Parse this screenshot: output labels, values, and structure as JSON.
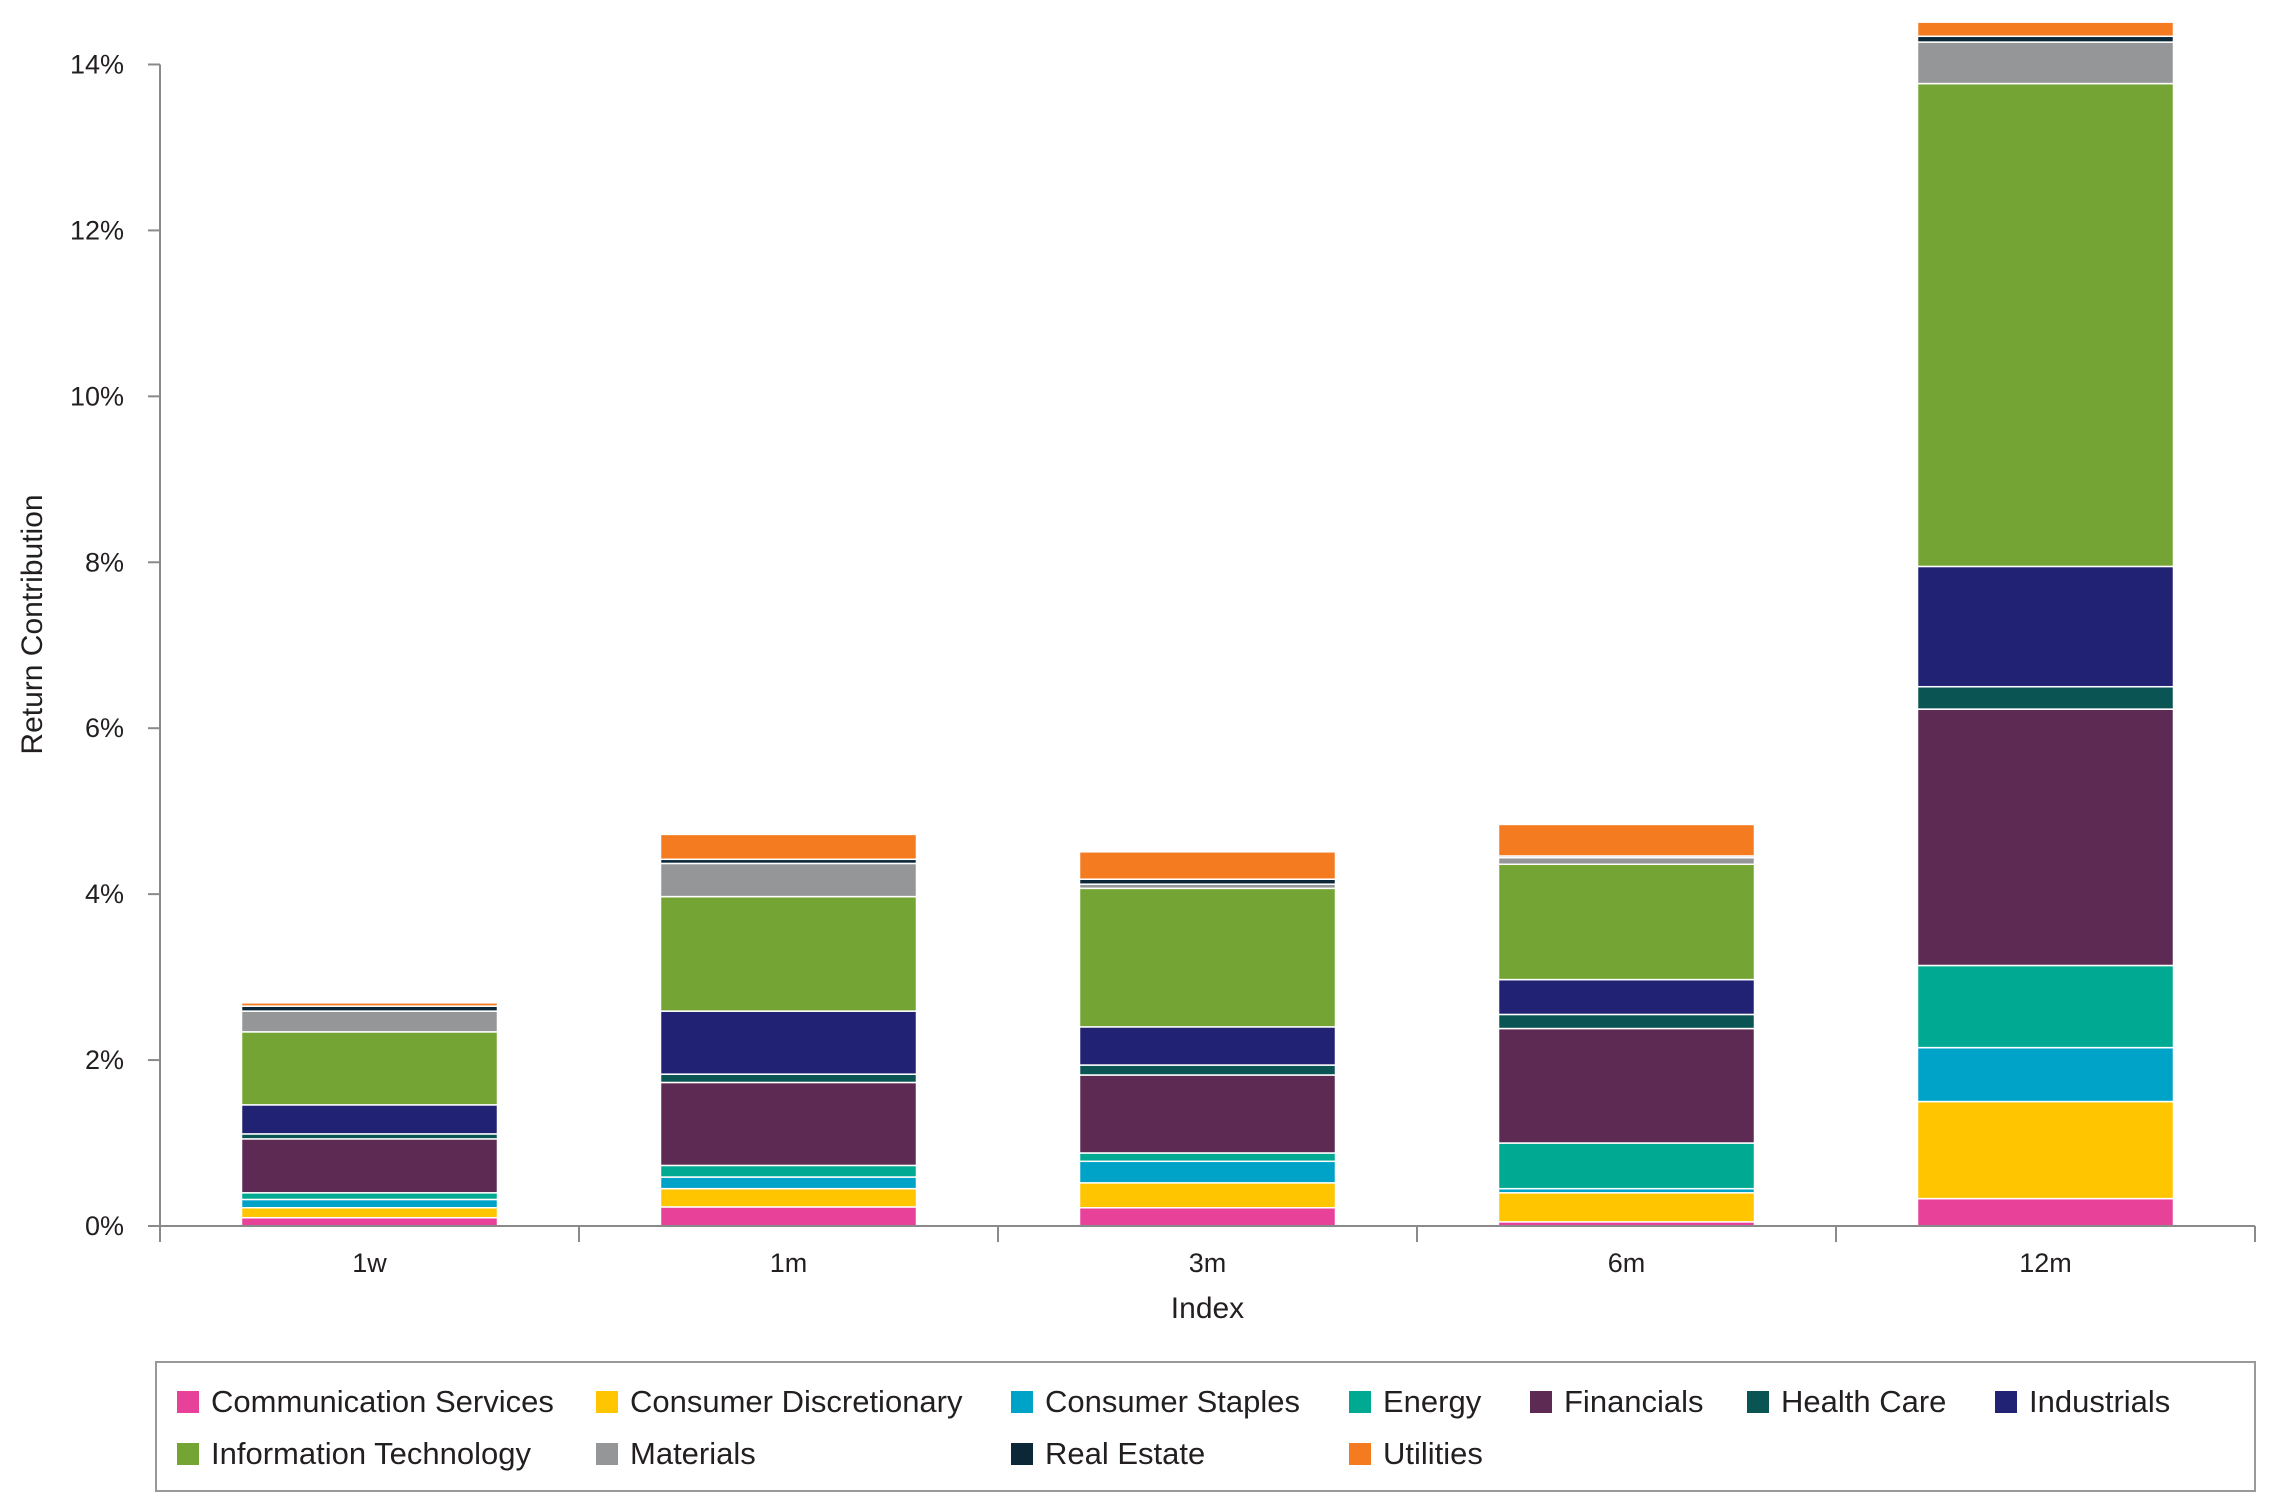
{
  "chart_data": {
    "type": "stacked-bar",
    "categories": [
      "1w",
      "1m",
      "3m",
      "6m",
      "12m"
    ],
    "xlabel": "Index",
    "ylabel": "Return Contribution",
    "ylim": [
      0,
      14.5
    ],
    "yticks": [
      0,
      2,
      4,
      6,
      8,
      10,
      12,
      14
    ],
    "ytick_labels": [
      "0%",
      "2%",
      "4%",
      "6%",
      "8%",
      "10%",
      "12%",
      "14%"
    ],
    "legend_position": "bottom",
    "series": [
      {
        "name": "Communication Services",
        "color": "#e8419a",
        "values": [
          0.1,
          0.23,
          0.22,
          0.05,
          0.33
        ]
      },
      {
        "name": "Consumer Discretionary",
        "color": "#ffc600",
        "values": [
          0.12,
          0.22,
          0.3,
          0.35,
          1.17
        ]
      },
      {
        "name": "Consumer Staples",
        "color": "#00a3c8",
        "values": [
          0.1,
          0.14,
          0.26,
          0.05,
          0.65
        ]
      },
      {
        "name": "Energy",
        "color": "#00a991",
        "values": [
          0.08,
          0.14,
          0.1,
          0.55,
          0.99
        ]
      },
      {
        "name": "Financials",
        "color": "#5d2a54",
        "values": [
          0.65,
          1.0,
          0.94,
          1.38,
          3.09
        ]
      },
      {
        "name": "Health Care",
        "color": "#0a5553",
        "values": [
          0.06,
          0.1,
          0.12,
          0.17,
          0.27
        ]
      },
      {
        "name": "Industrials",
        "color": "#222274",
        "values": [
          0.35,
          0.76,
          0.46,
          0.42,
          1.45
        ]
      },
      {
        "name": "Information Technology",
        "color": "#74a433",
        "values": [
          0.88,
          1.38,
          1.67,
          1.39,
          5.82
        ]
      },
      {
        "name": "Materials",
        "color": "#959698",
        "values": [
          0.25,
          0.4,
          0.05,
          0.08,
          0.5
        ]
      },
      {
        "name": "Real Estate",
        "color": "#0c2738",
        "values": [
          0.06,
          0.05,
          0.06,
          0.02,
          0.07
        ]
      },
      {
        "name": "Utilities",
        "color": "#f47b20",
        "values": [
          0.04,
          0.3,
          0.33,
          0.38,
          0.17
        ]
      }
    ]
  }
}
